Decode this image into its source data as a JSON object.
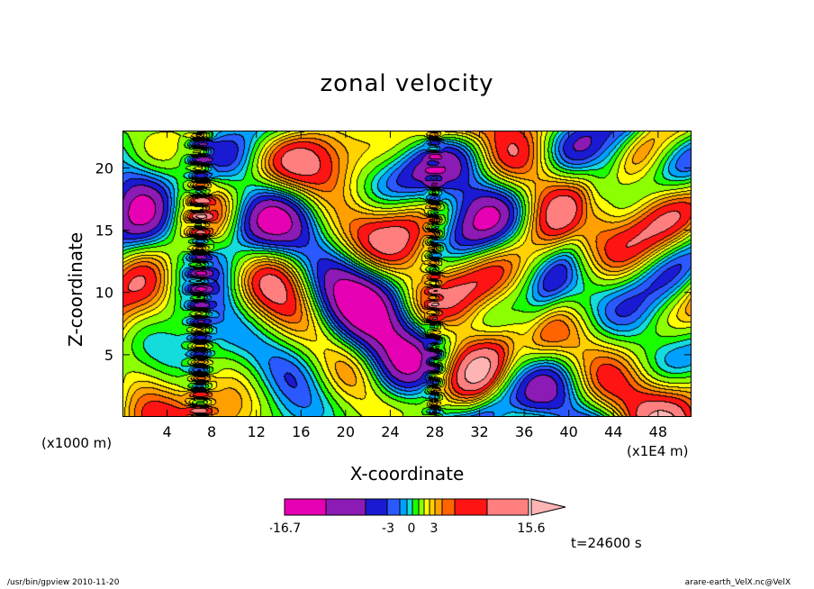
{
  "chart_data": {
    "type": "heatmap",
    "title": "zonal velocity",
    "xlabel": "X-coordinate",
    "ylabel": "Z-coordinate",
    "x_unit_left": "(x1000 m)",
    "x_unit_right": "(x1E4 m)",
    "x_ticks": [
      4,
      8,
      12,
      16,
      20,
      24,
      28,
      32,
      36,
      40,
      44,
      48
    ],
    "y_ticks": [
      5,
      10,
      15,
      20
    ],
    "xlim": [
      0,
      51
    ],
    "ylim": [
      0,
      23
    ],
    "colorbar": {
      "min_label": "-16.7",
      "max_label": "15.6",
      "tick_labels": [
        "-3",
        "0",
        "3"
      ],
      "colors": [
        "#e600b4",
        "#8c1ab4",
        "#1a1ad2",
        "#2a5aff",
        "#00a0ff",
        "#14dcdc",
        "#19ff00",
        "#8cff00",
        "#ffff00",
        "#ffd200",
        "#ffa000",
        "#ff6400",
        "#ff1414",
        "#ff7f7f",
        "#ffb4b4"
      ]
    },
    "contour_lines": true,
    "annotation": "t=24600 s"
  },
  "footer": {
    "left": "/usr/bin/gpview   2010-11-20",
    "right": "arare-earth_VelX.nc@VelX"
  }
}
